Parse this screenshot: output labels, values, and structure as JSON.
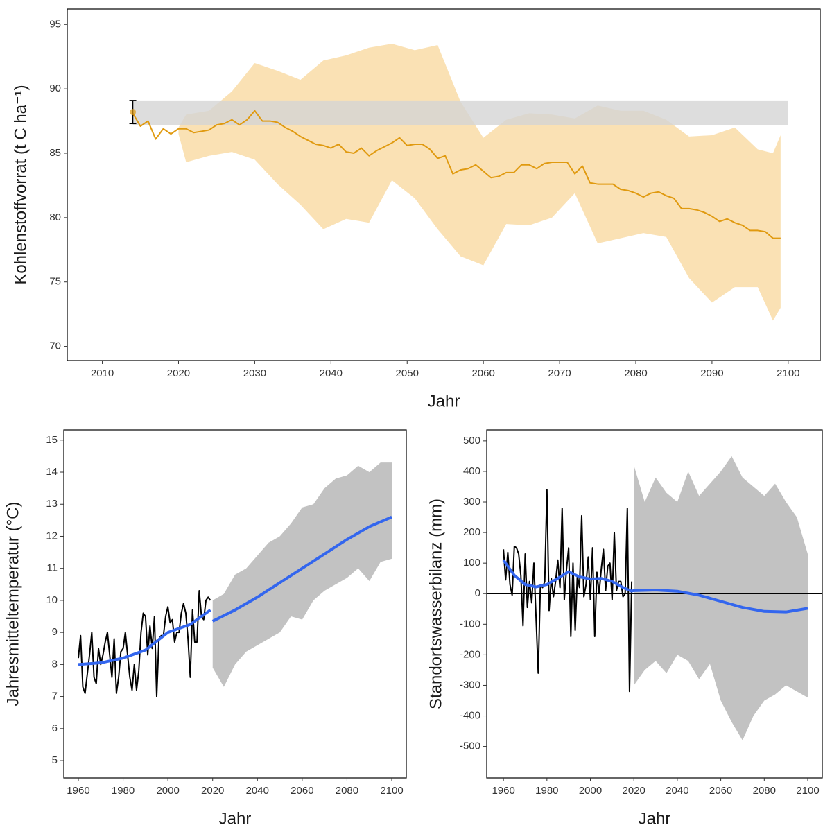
{
  "chart_data": [
    {
      "type": "line",
      "xlabel": "Jahr",
      "ylabel": "Kohlenstoffvorrat (t C ha⁻¹)",
      "xlim": [
        2005.4,
        2104.2
      ],
      "ylim": [
        68.9,
        96.2
      ],
      "xticks": [
        2010,
        2020,
        2030,
        2040,
        2050,
        2060,
        2070,
        2080,
        2090,
        2100
      ],
      "yticks": [
        70,
        75,
        80,
        85,
        90,
        95
      ],
      "ribbons": [
        {
          "color": "#f5c36a",
          "opacity": 0.5,
          "x": [
            2020,
            2021,
            2024,
            2027,
            2030,
            2033,
            2036,
            2039,
            2042,
            2045,
            2048,
            2051,
            2054,
            2057,
            2060,
            2063,
            2066,
            2069,
            2072,
            2075,
            2078,
            2081,
            2084,
            2087,
            2090,
            2093,
            2096,
            2098,
            2099
          ],
          "lower": [
            86.5,
            84.3,
            84.8,
            85.1,
            84.5,
            82.6,
            81.0,
            79.1,
            79.9,
            79.6,
            82.9,
            81.5,
            79.1,
            77.0,
            76.3,
            79.5,
            79.4,
            80.0,
            81.9,
            78.0,
            78.4,
            78.8,
            78.5,
            75.3,
            73.4,
            74.6,
            74.6,
            72.0,
            73.0
          ],
          "upper": [
            87.0,
            88.0,
            88.3,
            89.8,
            92.0,
            91.4,
            90.7,
            92.2,
            92.6,
            93.2,
            93.5,
            93.0,
            93.4,
            89.0,
            86.2,
            87.6,
            88.1,
            88.0,
            87.7,
            88.7,
            88.3,
            88.3,
            87.6,
            86.3,
            86.4,
            87.0,
            85.3,
            85.0,
            86.4
          ]
        },
        {
          "color": "#d4d4d4",
          "opacity": 0.8,
          "x": [
            2014,
            2100
          ],
          "lower": [
            87.2,
            87.2
          ],
          "upper": [
            89.1,
            89.1
          ]
        }
      ],
      "lines": [
        {
          "color": "#e09a10",
          "smooth": false,
          "x": [
            2014,
            2015,
            2016,
            2017,
            2018,
            2019,
            2020,
            2021,
            2022,
            2023,
            2024,
            2025,
            2026,
            2027,
            2028,
            2029,
            2030,
            2031,
            2032,
            2033,
            2034,
            2035,
            2036,
            2037,
            2038,
            2039,
            2040,
            2041,
            2042,
            2043,
            2044,
            2045,
            2046,
            2047,
            2048,
            2049,
            2050,
            2051,
            2052,
            2053,
            2054,
            2055,
            2056,
            2057,
            2058,
            2059,
            2060,
            2061,
            2062,
            2063,
            2064,
            2065,
            2066,
            2067,
            2068,
            2069,
            2070,
            2071,
            2072,
            2073,
            2074,
            2075,
            2076,
            2077,
            2078,
            2079,
            2080,
            2081,
            2082,
            2083,
            2084,
            2085,
            2086,
            2087,
            2088,
            2089,
            2090,
            2091,
            2092,
            2093,
            2094,
            2095,
            2096,
            2097,
            2098,
            2099
          ],
          "values": [
            88.1,
            87.1,
            87.5,
            86.1,
            86.9,
            86.5,
            86.9,
            86.9,
            86.6,
            86.7,
            86.8,
            87.2,
            87.3,
            87.6,
            87.2,
            87.6,
            88.3,
            87.5,
            87.5,
            87.4,
            87.0,
            86.7,
            86.3,
            86.0,
            85.7,
            85.6,
            85.4,
            85.7,
            85.1,
            85.0,
            85.4,
            84.8,
            85.2,
            85.5,
            85.8,
            86.2,
            85.6,
            85.7,
            85.7,
            85.3,
            84.6,
            84.8,
            83.4,
            83.7,
            83.8,
            84.1,
            83.6,
            83.1,
            83.2,
            83.5,
            83.5,
            84.1,
            84.1,
            83.8,
            84.2,
            84.3,
            84.3,
            84.3,
            83.4,
            84.0,
            82.7,
            82.6,
            82.6,
            82.6,
            82.2,
            82.1,
            81.9,
            81.6,
            81.9,
            82.0,
            81.7,
            81.5,
            80.7,
            80.7,
            80.6,
            80.4,
            80.1,
            79.7,
            79.9,
            79.6,
            79.4,
            79.0,
            79.0,
            78.9,
            78.4,
            78.4
          ]
        }
      ],
      "points": [
        {
          "color": "#e09a10",
          "x": 2014,
          "value": 88.2,
          "lower": 87.3,
          "upper": 89.1
        }
      ]
    },
    {
      "type": "line",
      "xlabel": "Jahr",
      "ylabel": "Jahresmitteltemperatur (°C)",
      "xlim": [
        1953.5,
        2106.5
      ],
      "ylim": [
        4.46,
        15.32
      ],
      "xticks": [
        1960,
        1980,
        2000,
        2020,
        2040,
        2060,
        2080,
        2100
      ],
      "yticks": [
        5,
        6,
        7,
        8,
        9,
        10,
        11,
        12,
        13,
        14,
        15
      ],
      "ribbons": [
        {
          "color": "#b3b3b3",
          "opacity": 0.8,
          "x": [
            2020,
            2025,
            2030,
            2035,
            2040,
            2045,
            2050,
            2055,
            2060,
            2065,
            2070,
            2075,
            2080,
            2085,
            2090,
            2095,
            2100
          ],
          "lower": [
            7.9,
            7.3,
            8.0,
            8.4,
            8.6,
            8.8,
            9.0,
            9.5,
            9.4,
            10.0,
            10.3,
            10.5,
            10.7,
            11.0,
            10.6,
            11.2,
            11.3
          ],
          "upper": [
            10.0,
            10.2,
            10.8,
            11.0,
            11.4,
            11.8,
            12.0,
            12.4,
            12.9,
            13.0,
            13.5,
            13.8,
            13.9,
            14.2,
            14.0,
            14.3,
            14.3
          ]
        }
      ],
      "lines": [
        {
          "color": "#000000",
          "smooth": false,
          "x": [
            1960,
            1961,
            1962,
            1963,
            1964,
            1965,
            1966,
            1967,
            1968,
            1969,
            1970,
            1971,
            1972,
            1973,
            1974,
            1975,
            1976,
            1977,
            1978,
            1979,
            1980,
            1981,
            1982,
            1983,
            1984,
            1985,
            1986,
            1987,
            1988,
            1989,
            1990,
            1991,
            1992,
            1993,
            1994,
            1995,
            1996,
            1997,
            1998,
            1999,
            2000,
            2001,
            2002,
            2003,
            2004,
            2005,
            2006,
            2007,
            2008,
            2009,
            2010,
            2011,
            2012,
            2013,
            2014,
            2015,
            2016,
            2017,
            2018,
            2019
          ],
          "values": [
            8.2,
            8.9,
            7.3,
            7.1,
            7.7,
            8.3,
            9.0,
            7.6,
            7.4,
            8.5,
            8.0,
            8.3,
            8.7,
            9.0,
            8.3,
            7.6,
            8.8,
            7.1,
            7.6,
            8.4,
            8.5,
            9.0,
            8.3,
            7.6,
            7.2,
            8.0,
            7.2,
            7.8,
            9.0,
            9.6,
            9.5,
            8.3,
            9.2,
            8.5,
            9.5,
            7.0,
            8.8,
            8.9,
            8.9,
            9.5,
            9.8,
            9.3,
            9.4,
            8.7,
            9.0,
            9.0,
            9.6,
            9.9,
            9.6,
            8.8,
            7.6,
            9.7,
            8.7,
            8.7,
            10.3,
            9.5,
            9.4,
            10.0,
            10.1,
            10.0
          ]
        },
        {
          "color": "#3366ee",
          "smooth": true,
          "x": [
            1960,
            1970,
            1980,
            1990,
            2000,
            2010,
            2019
          ],
          "values": [
            8.0,
            8.05,
            8.2,
            8.45,
            9.0,
            9.25,
            9.7
          ]
        },
        {
          "color": "#3366ee",
          "smooth": true,
          "x": [
            2020,
            2030,
            2040,
            2050,
            2060,
            2070,
            2080,
            2090,
            2100
          ],
          "values": [
            9.35,
            9.7,
            10.1,
            10.55,
            11.0,
            11.45,
            11.9,
            12.3,
            12.6
          ]
        }
      ]
    },
    {
      "type": "line",
      "xlabel": "Jahr",
      "ylabel": "Standortswasserbilanz (mm)",
      "xlim": [
        1952.3,
        2106.7
      ],
      "ylim": [
        -603,
        536
      ],
      "xticks": [
        1960,
        1980,
        2000,
        2020,
        2040,
        2060,
        2080,
        2100
      ],
      "yticks": [
        -500,
        -400,
        -300,
        -200,
        -100,
        0,
        100,
        200,
        300,
        400,
        500
      ],
      "hline": 0,
      "ribbons": [
        {
          "color": "#b3b3b3",
          "opacity": 0.8,
          "x": [
            2020,
            2025,
            2030,
            2035,
            2040,
            2045,
            2050,
            2055,
            2060,
            2065,
            2070,
            2075,
            2080,
            2085,
            2090,
            2095,
            2100
          ],
          "lower": [
            -300,
            -250,
            -220,
            -260,
            -200,
            -220,
            -280,
            -230,
            -350,
            -420,
            -480,
            -400,
            -350,
            -330,
            -300,
            -320,
            -340
          ],
          "upper": [
            420,
            300,
            380,
            330,
            300,
            400,
            320,
            360,
            400,
            450,
            380,
            350,
            320,
            360,
            300,
            250,
            130
          ]
        }
      ],
      "lines": [
        {
          "color": "#000000",
          "smooth": false,
          "x": [
            1960,
            1961,
            1962,
            1963,
            1964,
            1965,
            1966,
            1967,
            1968,
            1969,
            1970,
            1971,
            1972,
            1973,
            1974,
            1975,
            1976,
            1977,
            1978,
            1979,
            1980,
            1981,
            1982,
            1983,
            1984,
            1985,
            1986,
            1987,
            1988,
            1989,
            1990,
            1991,
            1992,
            1993,
            1994,
            1995,
            1996,
            1997,
            1998,
            1999,
            2000,
            2001,
            2002,
            2003,
            2004,
            2005,
            2006,
            2007,
            2008,
            2009,
            2010,
            2011,
            2012,
            2013,
            2014,
            2015,
            2016,
            2017,
            2018,
            2019
          ],
          "values": [
            145,
            45,
            135,
            30,
            -5,
            155,
            150,
            130,
            60,
            -105,
            130,
            -45,
            40,
            -30,
            100,
            -80,
            -260,
            30,
            20,
            40,
            340,
            -55,
            50,
            -10,
            40,
            110,
            20,
            280,
            -20,
            80,
            150,
            -140,
            100,
            -120,
            60,
            20,
            255,
            -10,
            30,
            120,
            -20,
            150,
            -140,
            70,
            0,
            80,
            145,
            10,
            90,
            100,
            -20,
            200,
            10,
            40,
            40,
            -10,
            0,
            280,
            -320,
            40
          ]
        },
        {
          "color": "#3366ee",
          "smooth": true,
          "x": [
            1960,
            1965,
            1970,
            1975,
            1980,
            1985,
            1990,
            1995,
            2000,
            2005,
            2010,
            2015,
            2019,
            2020,
            2030,
            2040,
            2050,
            2060,
            2070,
            2080,
            2090,
            2100
          ],
          "values": [
            110,
            60,
            30,
            22,
            30,
            50,
            72,
            55,
            48,
            50,
            40,
            20,
            8,
            10,
            12,
            8,
            -5,
            -25,
            -45,
            -58,
            -60,
            -48
          ]
        }
      ]
    }
  ]
}
